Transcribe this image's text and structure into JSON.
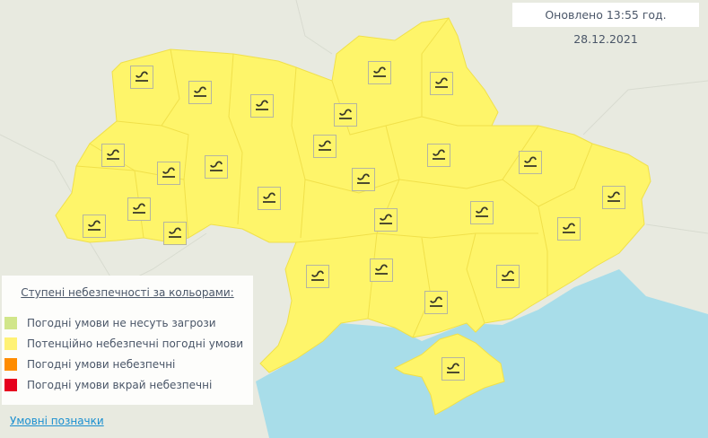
{
  "updated_text": "Оновлено 13:55 год. 28.12.2021",
  "colors": {
    "land_background": "#e8eae0",
    "sea": "#a8dde9",
    "region_fill": "#fef56a",
    "region_border": "#f0e04a",
    "icon_border": "#b5b5a0"
  },
  "map": {
    "warning_icon": "glaze-ice-icon",
    "warning_level": "Потенційно небезпечні погодні умови",
    "region_count_with_icon": 26
  },
  "legend": {
    "title": "Ступені небезпечності за кольорами:",
    "items": [
      {
        "label": "Погодні умови не несуть загрози",
        "color": "#d1e68a"
      },
      {
        "label": "Потенційно небезпечні погодні умови",
        "color": "#fff275"
      },
      {
        "label": "Погодні умови небезпечні",
        "color": "#ff8c00"
      },
      {
        "label": "Погодні умови вкрай небезпечні",
        "color": "#e6001e"
      }
    ]
  },
  "legend_link": "Умовні позначки"
}
